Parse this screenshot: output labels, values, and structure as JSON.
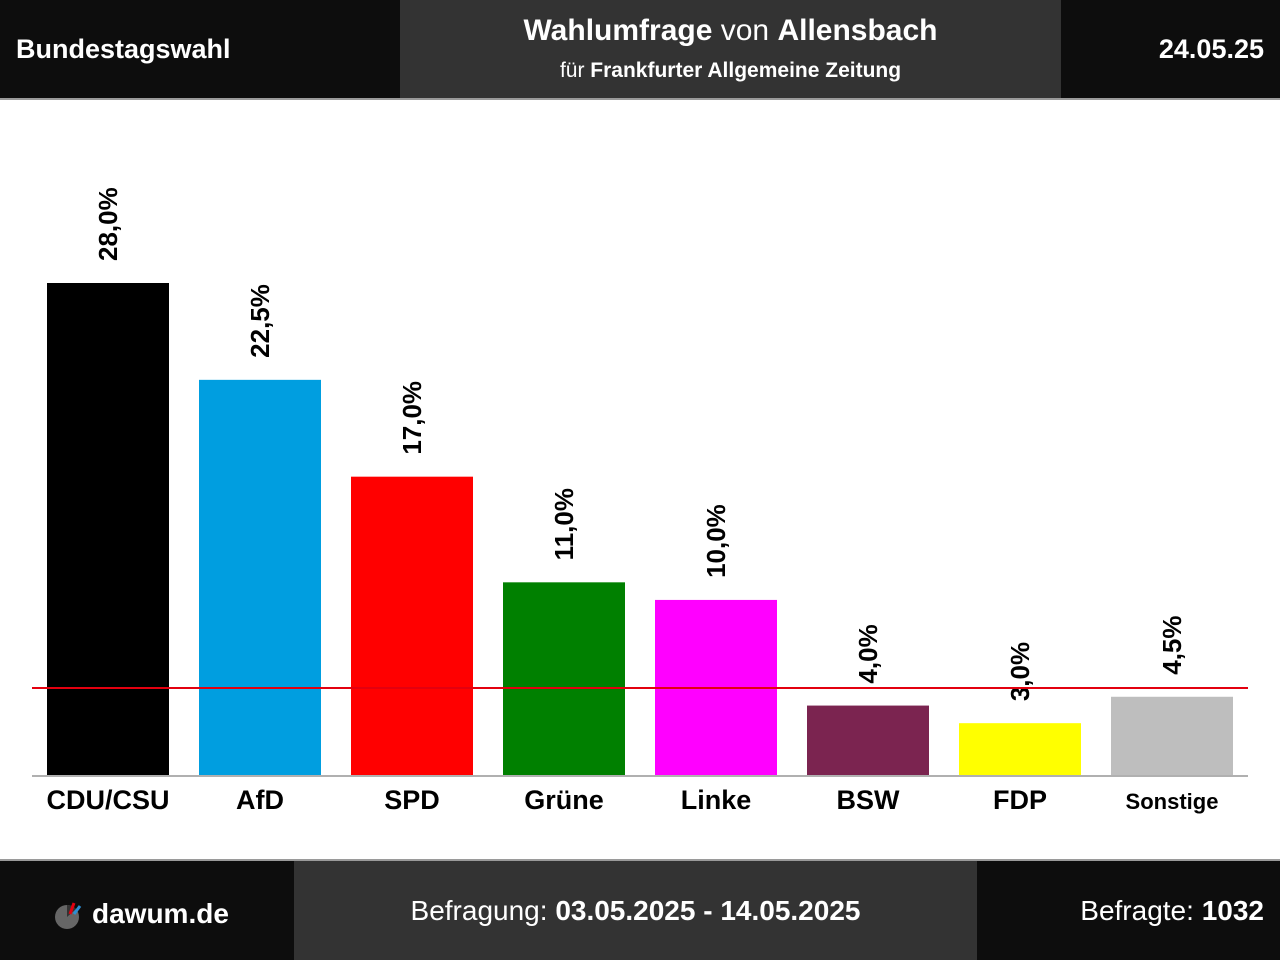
{
  "header": {
    "left": "Bundestagswahl",
    "title_part1": "Wahlumfrage",
    "title_part2": "von",
    "title_part3": "Allensbach",
    "subtitle_part1": "für",
    "subtitle_part2": "Frankfurter Allgemeine Zeitung",
    "date": "24.05.25"
  },
  "footer": {
    "site": "dawum.de",
    "logo_icon": "pie-chart-logo-icon",
    "period_label": "Befragung:",
    "period_value": "03.05.2025 - 14.05.2025",
    "sample_label": "Befragte:",
    "sample_value": "1032"
  },
  "chart_data": {
    "type": "bar",
    "categories": [
      "CDU/CSU",
      "AfD",
      "SPD",
      "Grüne",
      "Linke",
      "BSW",
      "FDP",
      "Sonstige"
    ],
    "values": [
      28.0,
      22.5,
      17.0,
      11.0,
      10.0,
      4.0,
      3.0,
      4.5
    ],
    "value_labels": [
      "28,0%",
      "22,5%",
      "17,0%",
      "11,0%",
      "10,0%",
      "4,0%",
      "3,0%",
      "4,5%"
    ],
    "colors": [
      "#000000",
      "#009ee0",
      "#ff0000",
      "#008000",
      "#ff00ff",
      "#7b2450",
      "#ffff00",
      "#bebebe"
    ],
    "threshold": 5,
    "threshold_color": "#e3000f",
    "ylim": [
      0,
      28
    ],
    "title": "",
    "xlabel": "",
    "ylabel": "",
    "grid": false,
    "legend": "none"
  }
}
